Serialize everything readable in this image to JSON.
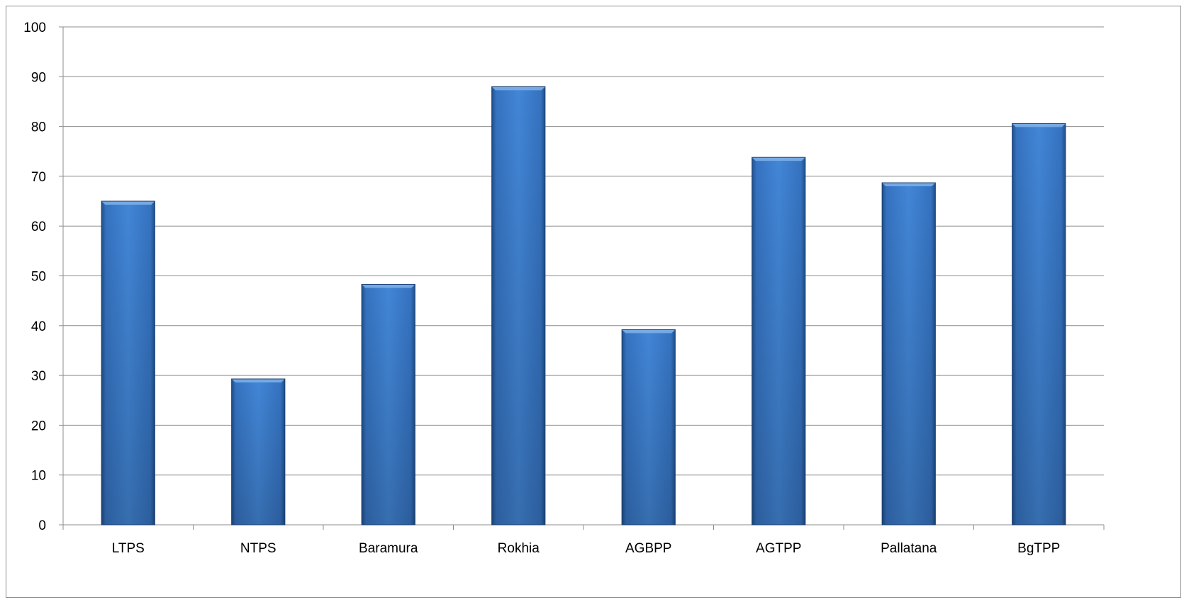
{
  "chart_data": {
    "type": "bar",
    "categories": [
      "LTPS",
      "NTPS",
      "Baramura",
      "Rokhia",
      "AGBPP",
      "AGTPP",
      "Pallatana",
      "BgTPP"
    ],
    "values": [
      65,
      29.3,
      48.3,
      88,
      39.2,
      73.8,
      68.7,
      80.6
    ],
    "title": "",
    "xlabel": "",
    "ylabel": "",
    "ylim": [
      0,
      100
    ],
    "yticks": [
      0,
      10,
      20,
      30,
      40,
      50,
      60,
      70,
      80,
      90,
      100
    ],
    "grid": true,
    "legend": "none",
    "colors": {
      "bar": "#3f7fcf",
      "bar_dark": "#2b5d9c",
      "grid": "#8c8c8c",
      "axis": "#8c8c8c"
    }
  }
}
